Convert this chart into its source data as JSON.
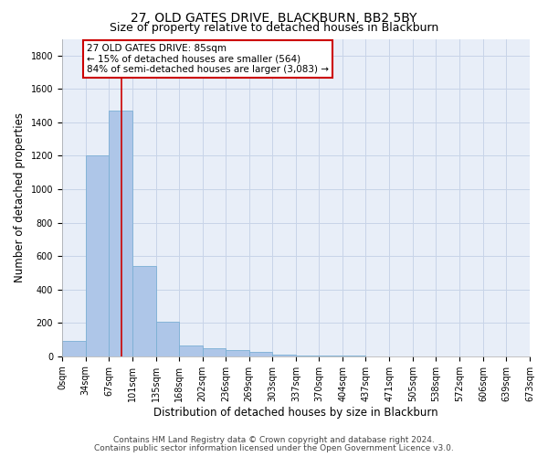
{
  "title": "27, OLD GATES DRIVE, BLACKBURN, BB2 5BY",
  "subtitle": "Size of property relative to detached houses in Blackburn",
  "xlabel": "Distribution of detached houses by size in Blackburn",
  "ylabel": "Number of detached properties",
  "bar_values": [
    90,
    1200,
    1470,
    540,
    205,
    65,
    45,
    35,
    28,
    10,
    5,
    3,
    2,
    1,
    0,
    0,
    0,
    0,
    0,
    0
  ],
  "bin_edges": [
    0,
    34,
    67,
    101,
    135,
    168,
    202,
    236,
    269,
    303,
    337,
    370,
    404,
    437,
    471,
    505,
    538,
    572,
    606,
    639,
    673
  ],
  "tick_labels": [
    "0sqm",
    "34sqm",
    "67sqm",
    "101sqm",
    "135sqm",
    "168sqm",
    "202sqm",
    "236sqm",
    "269sqm",
    "303sqm",
    "337sqm",
    "370sqm",
    "404sqm",
    "437sqm",
    "471sqm",
    "505sqm",
    "538sqm",
    "572sqm",
    "606sqm",
    "639sqm",
    "673sqm"
  ],
  "bar_color": "#aec6e8",
  "bar_edge_color": "#7bafd4",
  "grid_color": "#c8d4e8",
  "background_color": "#e8eef8",
  "vline_x": 85,
  "vline_color": "#cc0000",
  "annotation_line1": "27 OLD GATES DRIVE: 85sqm",
  "annotation_line2": "← 15% of detached houses are smaller (564)",
  "annotation_line3": "84% of semi-detached houses are larger (3,083) →",
  "annotation_box_color": "#cc0000",
  "ylim": [
    0,
    1900
  ],
  "yticks": [
    0,
    200,
    400,
    600,
    800,
    1000,
    1200,
    1400,
    1600,
    1800
  ],
  "footer_line1": "Contains HM Land Registry data © Crown copyright and database right 2024.",
  "footer_line2": "Contains public sector information licensed under the Open Government Licence v3.0.",
  "title_fontsize": 10,
  "subtitle_fontsize": 9,
  "axis_label_fontsize": 8.5,
  "tick_fontsize": 7,
  "annotation_fontsize": 7.5,
  "footer_fontsize": 6.5
}
